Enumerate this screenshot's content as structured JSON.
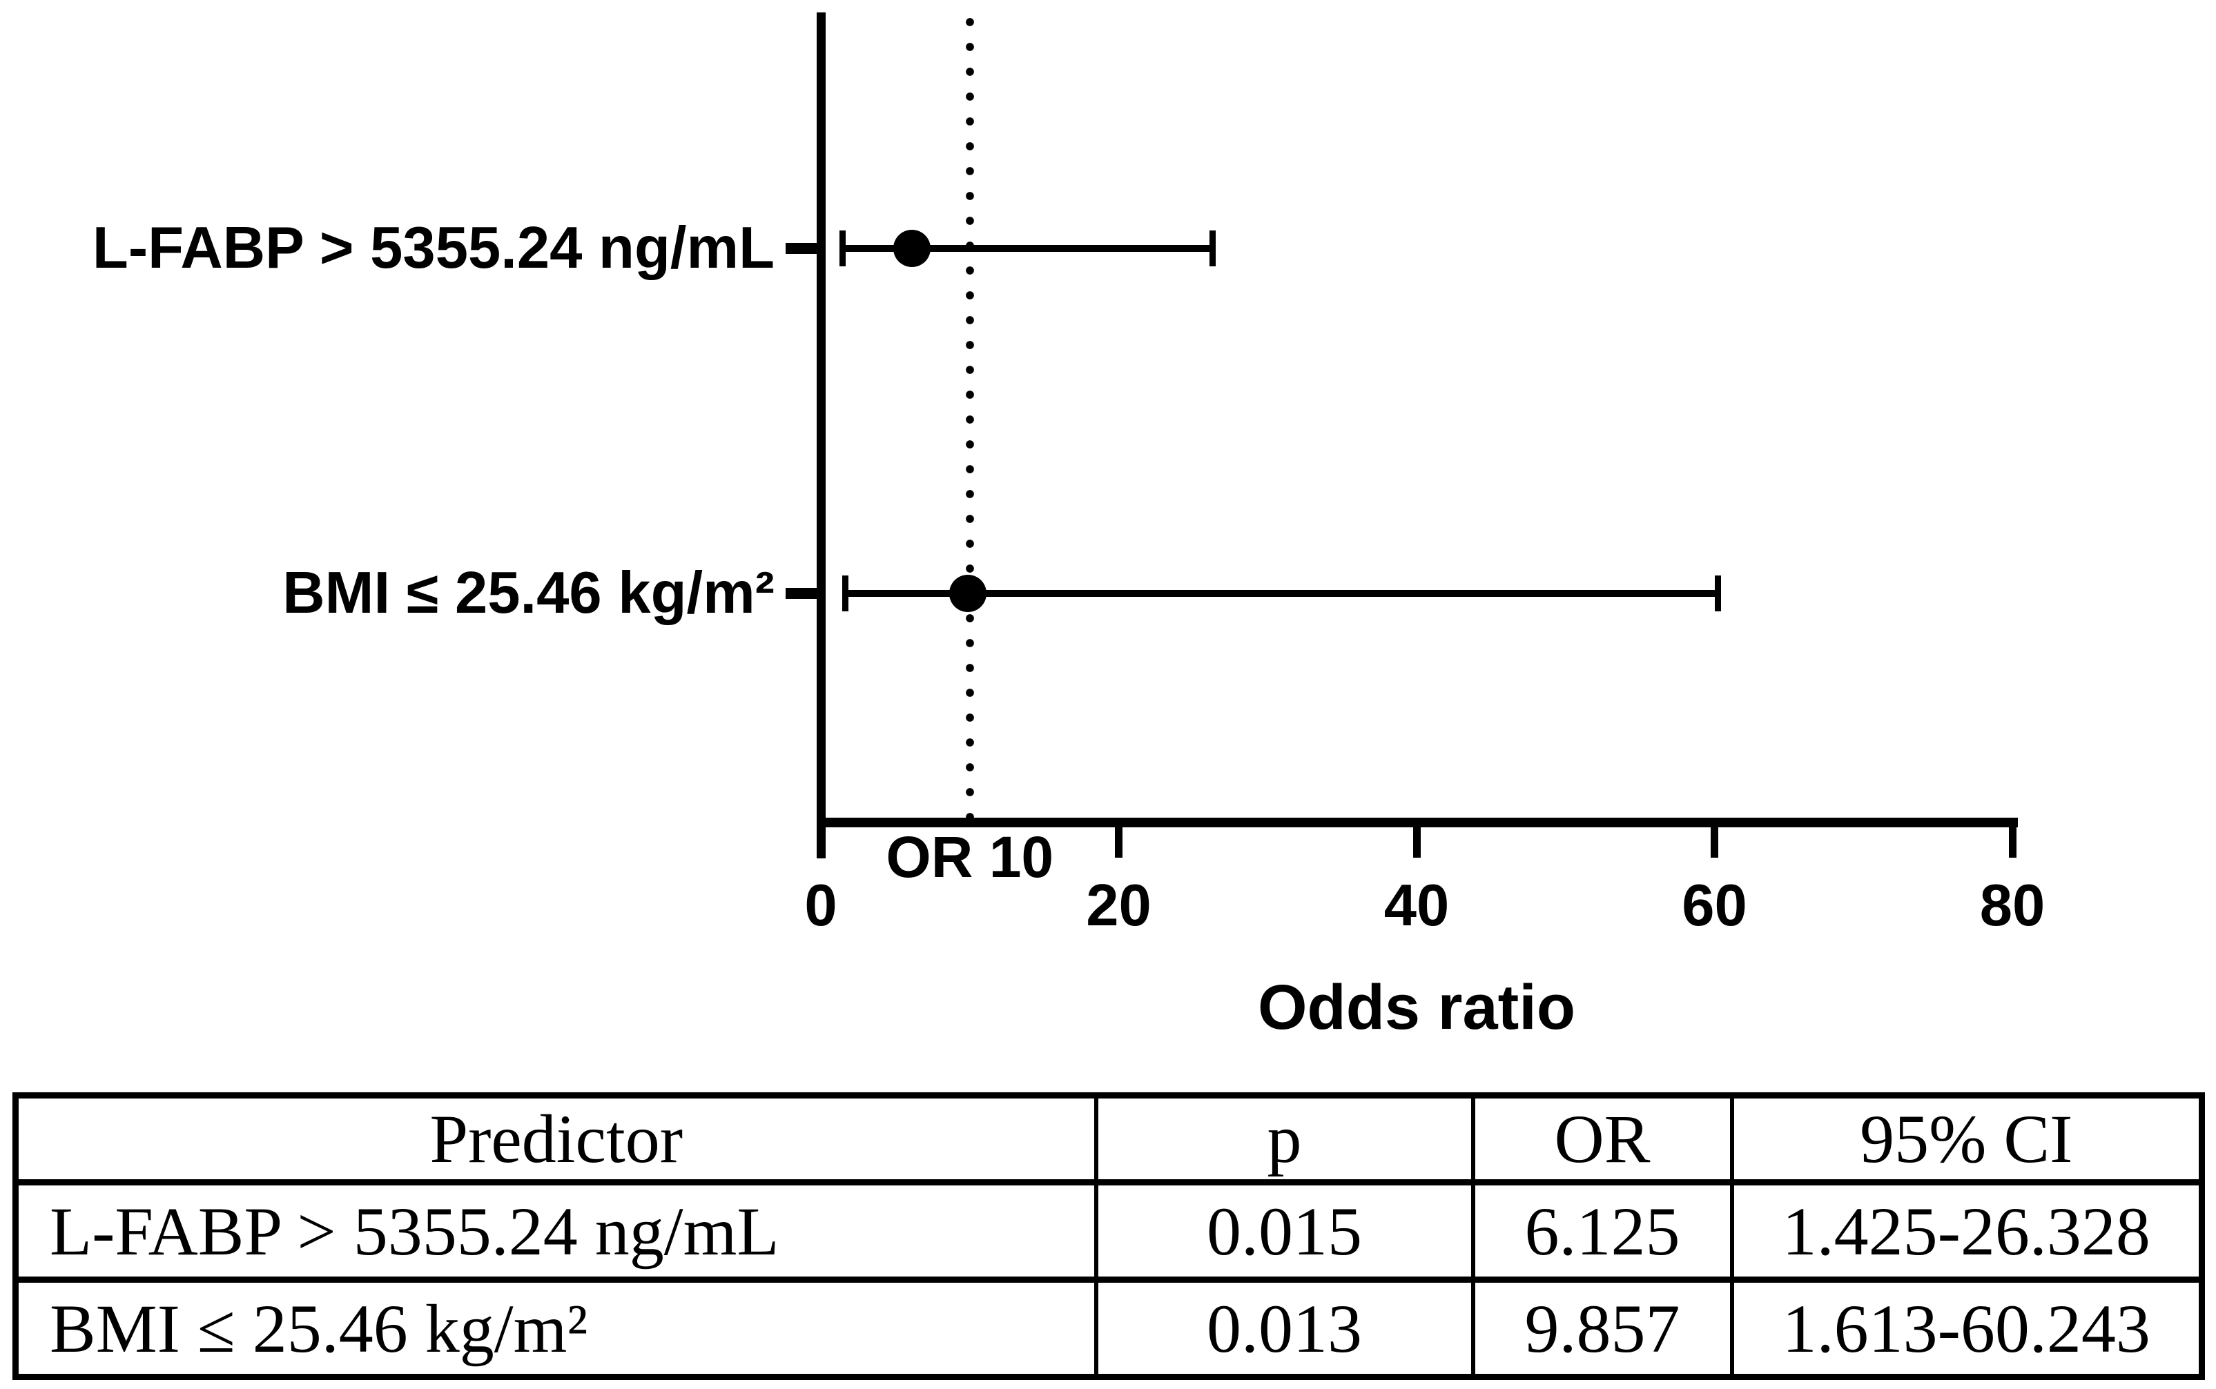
{
  "chart_data": {
    "type": "forest",
    "title": "",
    "xlabel": "Odds ratio",
    "ylabel": "",
    "xlim": [
      0,
      80
    ],
    "x_ticks": [
      0,
      20,
      40,
      60,
      80
    ],
    "grid": false,
    "reference_line": {
      "value": 10,
      "label": "OR 10",
      "style": "dotted"
    },
    "rows": [
      {
        "label": "L-FABP > 5355.24 ng/mL",
        "or": 6.125,
        "ci_low": 1.425,
        "ci_high": 26.328
      },
      {
        "label": "BMI ≤ 25.46 kg/m²",
        "or": 9.857,
        "ci_low": 1.613,
        "ci_high": 60.243
      }
    ],
    "colors": {
      "foreground": "#000000",
      "background": "#ffffff"
    }
  },
  "table": {
    "headers": [
      "Predictor",
      "p",
      "OR",
      "95% CI"
    ],
    "rows": [
      [
        "L-FABP > 5355.24 ng/mL",
        "0.015",
        "6.125",
        "1.425-26.328"
      ],
      [
        "BMI ≤ 25.46 kg/m²",
        "0.013",
        "9.857",
        "1.613-60.243"
      ]
    ]
  }
}
